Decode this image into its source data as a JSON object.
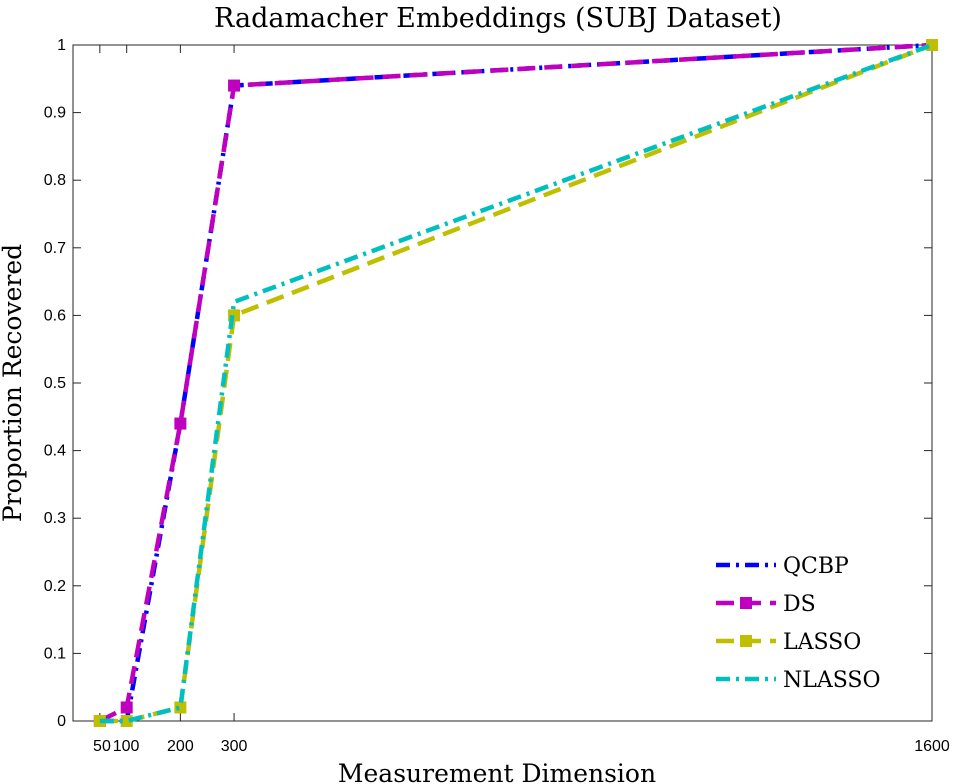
{
  "chart_data": {
    "type": "line",
    "title": "Radamacher Embeddings (SUBJ Dataset)",
    "xlabel": "Measurement Dimension",
    "ylabel": "Proportion Recovered",
    "x": [
      50,
      100,
      200,
      300,
      1600
    ],
    "xticks": [
      "50",
      "100",
      "200",
      "300",
      "1600"
    ],
    "yticks": [
      "0",
      "0.1",
      "0.2",
      "0.3",
      "0.4",
      "0.5",
      "0.6",
      "0.7",
      "0.8",
      "0.9",
      "1"
    ],
    "xlim": [
      0,
      1600
    ],
    "ylim": [
      0,
      1
    ],
    "grid": false,
    "legend_position": "bottom-right",
    "series": [
      {
        "name": "QCBP",
        "values": [
          0,
          0,
          0.44,
          0.94,
          1
        ],
        "color": "#0000ff",
        "dash": "dashdot",
        "marker": "none"
      },
      {
        "name": "DS",
        "values": [
          0,
          0.02,
          0.44,
          0.94,
          1
        ],
        "color": "#bf00bf",
        "dash": "dashed",
        "marker": "square"
      },
      {
        "name": "LASSO",
        "values": [
          0,
          0,
          0.02,
          0.6,
          1
        ],
        "color": "#bfbf00",
        "dash": "dashed",
        "marker": "square"
      },
      {
        "name": "NLASSO",
        "values": [
          0,
          0,
          0.02,
          0.62,
          1
        ],
        "color": "#00bfbf",
        "dash": "dashdot",
        "marker": "none"
      }
    ]
  }
}
